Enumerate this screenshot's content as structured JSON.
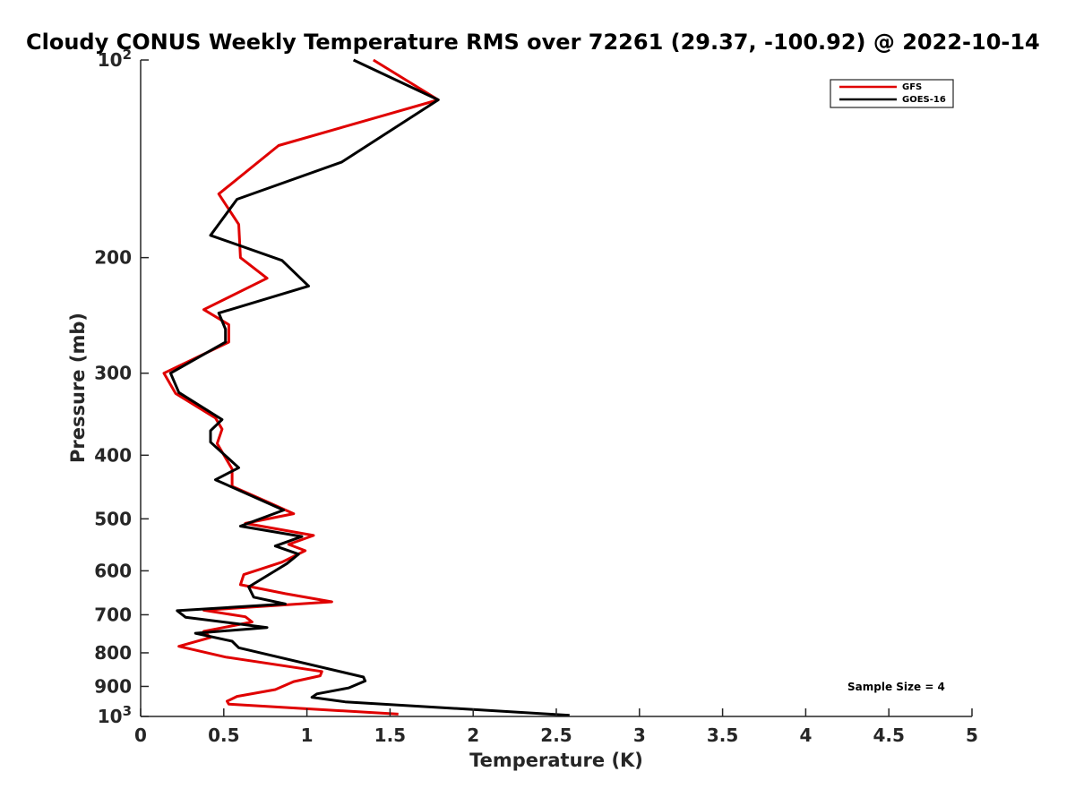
{
  "chart_data": {
    "type": "line",
    "title": "Cloudy CONUS Weekly Temperature RMS over 72261 (29.37, -100.92) @ 2022-10-14",
    "xlabel": "Temperature (K)",
    "ylabel": "Pressure (mb)",
    "xlim": [
      0,
      5
    ],
    "ylim": [
      100,
      1000
    ],
    "y_scale": "log",
    "y_reversed": true,
    "x_ticks": [
      "0",
      "0.5",
      "1",
      "1.5",
      "2",
      "2.5",
      "3",
      "3.5",
      "4",
      "4.5",
      "5"
    ],
    "x_tick_values": [
      0,
      0.5,
      1,
      1.5,
      2,
      2.5,
      3,
      3.5,
      4,
      4.5,
      5
    ],
    "y_ticks": [
      {
        "value": 100,
        "base": "10",
        "exp": "2"
      },
      {
        "value": 200,
        "label": "200"
      },
      {
        "value": 300,
        "label": "300"
      },
      {
        "value": 400,
        "label": "400"
      },
      {
        "value": 500,
        "label": "500"
      },
      {
        "value": 600,
        "label": "600"
      },
      {
        "value": 700,
        "label": "700"
      },
      {
        "value": 800,
        "label": "800"
      },
      {
        "value": 900,
        "label": "900"
      },
      {
        "value": 1000,
        "base": "10",
        "exp": "3"
      }
    ],
    "legend_position": "top-right",
    "grid": false,
    "annotation": "Sample Size = 4",
    "series": [
      {
        "name": "GFS",
        "color": "#e00000",
        "points": [
          [
            1.4,
            100
          ],
          [
            1.79,
            115
          ],
          [
            0.83,
            135
          ],
          [
            0.47,
            160
          ],
          [
            0.59,
            178
          ],
          [
            0.6,
            200
          ],
          [
            0.76,
            215
          ],
          [
            0.38,
            240
          ],
          [
            0.53,
            253
          ],
          [
            0.53,
            269
          ],
          [
            0.14,
            300
          ],
          [
            0.21,
            322
          ],
          [
            0.45,
            351
          ],
          [
            0.49,
            365
          ],
          [
            0.46,
            384
          ],
          [
            0.55,
            420
          ],
          [
            0.55,
            446
          ],
          [
            0.76,
            471
          ],
          [
            0.92,
            491
          ],
          [
            0.63,
            508
          ],
          [
            1.04,
            530
          ],
          [
            0.89,
            547
          ],
          [
            0.99,
            559
          ],
          [
            0.85,
            582
          ],
          [
            0.62,
            608
          ],
          [
            0.6,
            630
          ],
          [
            0.87,
            650
          ],
          [
            1.15,
            669
          ],
          [
            0.38,
            689
          ],
          [
            0.63,
            705
          ],
          [
            0.67,
            718
          ],
          [
            0.38,
            742
          ],
          [
            0.42,
            758
          ],
          [
            0.23,
            782
          ],
          [
            0.51,
            812
          ],
          [
            1.09,
            854
          ],
          [
            1.08,
            867
          ],
          [
            0.92,
            885
          ],
          [
            0.81,
            910
          ],
          [
            0.58,
            932
          ],
          [
            0.52,
            948
          ],
          [
            0.53,
            958
          ],
          [
            1.55,
            992
          ]
        ]
      },
      {
        "name": "GOES-16",
        "color": "#000000",
        "points": [
          [
            1.28,
            100
          ],
          [
            1.79,
            115
          ],
          [
            1.21,
            143
          ],
          [
            0.58,
            163
          ],
          [
            0.42,
            185
          ],
          [
            0.85,
            202
          ],
          [
            1.01,
            221
          ],
          [
            0.47,
            243
          ],
          [
            0.51,
            257
          ],
          [
            0.51,
            269
          ],
          [
            0.18,
            300
          ],
          [
            0.23,
            321
          ],
          [
            0.49,
            353
          ],
          [
            0.42,
            367
          ],
          [
            0.42,
            382
          ],
          [
            0.59,
            418
          ],
          [
            0.45,
            436
          ],
          [
            0.86,
            485
          ],
          [
            0.6,
            513
          ],
          [
            0.97,
            532
          ],
          [
            0.81,
            550
          ],
          [
            0.95,
            566
          ],
          [
            0.88,
            585
          ],
          [
            0.8,
            602
          ],
          [
            0.65,
            635
          ],
          [
            0.68,
            658
          ],
          [
            0.87,
            674
          ],
          [
            0.22,
            690
          ],
          [
            0.27,
            706
          ],
          [
            0.76,
            732
          ],
          [
            0.33,
            747
          ],
          [
            0.55,
            768
          ],
          [
            0.59,
            786
          ],
          [
            1.34,
            871
          ],
          [
            1.35,
            883
          ],
          [
            1.25,
            905
          ],
          [
            1.06,
            924
          ],
          [
            1.03,
            935
          ],
          [
            1.23,
            950
          ],
          [
            2.58,
            996
          ]
        ]
      }
    ]
  }
}
